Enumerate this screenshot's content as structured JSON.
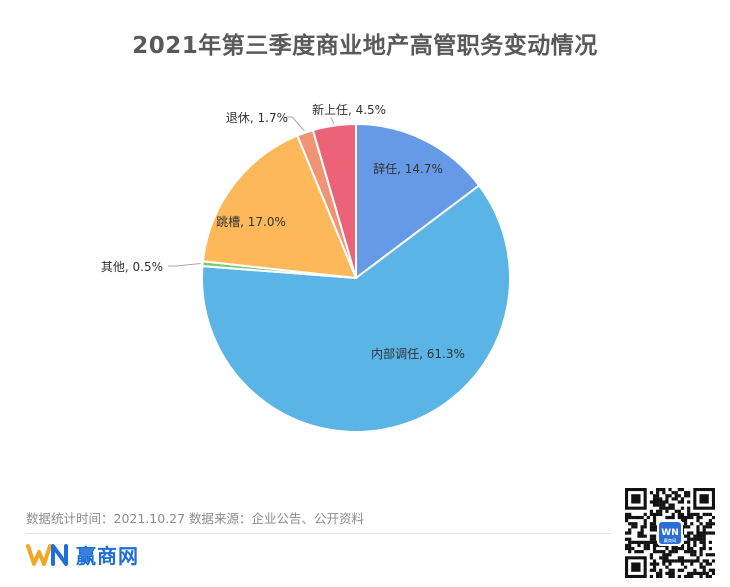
{
  "chart_data": {
    "type": "pie",
    "title": "2021年第三季度商业地产高管职务变动情况",
    "slices": [
      {
        "label": "辞任",
        "value": 14.7,
        "display": "辞任, 14.7%",
        "color": "#6699e6"
      },
      {
        "label": "内部调任",
        "value": 61.3,
        "display": "内部调任, 61.3%",
        "color": "#5ab4e5"
      },
      {
        "label": "其他",
        "value": 0.5,
        "display": "其他, 0.5%",
        "color": "#7dc97a"
      },
      {
        "label": "跳槽",
        "value": 17.0,
        "display": "跳槽, 17.0%",
        "color": "#fdb85a"
      },
      {
        "label": "退休",
        "value": 1.7,
        "display": "退休, 1.7%",
        "color": "#ef9575"
      },
      {
        "label": "新上任",
        "value": 4.5,
        "display": "新上任, 4.5%",
        "color": "#ec6378"
      }
    ],
    "start_angle": "12 o'clock",
    "direction": "clockwise"
  },
  "footer": {
    "note": "数据统计时间：2021.10.27 数据来源：企业公告、公开资料",
    "brand_name": "赢商网",
    "qr_badge": "赢商网"
  },
  "colors": {
    "brand": "#1e6fd9",
    "brand_accent": "#f5a623"
  }
}
